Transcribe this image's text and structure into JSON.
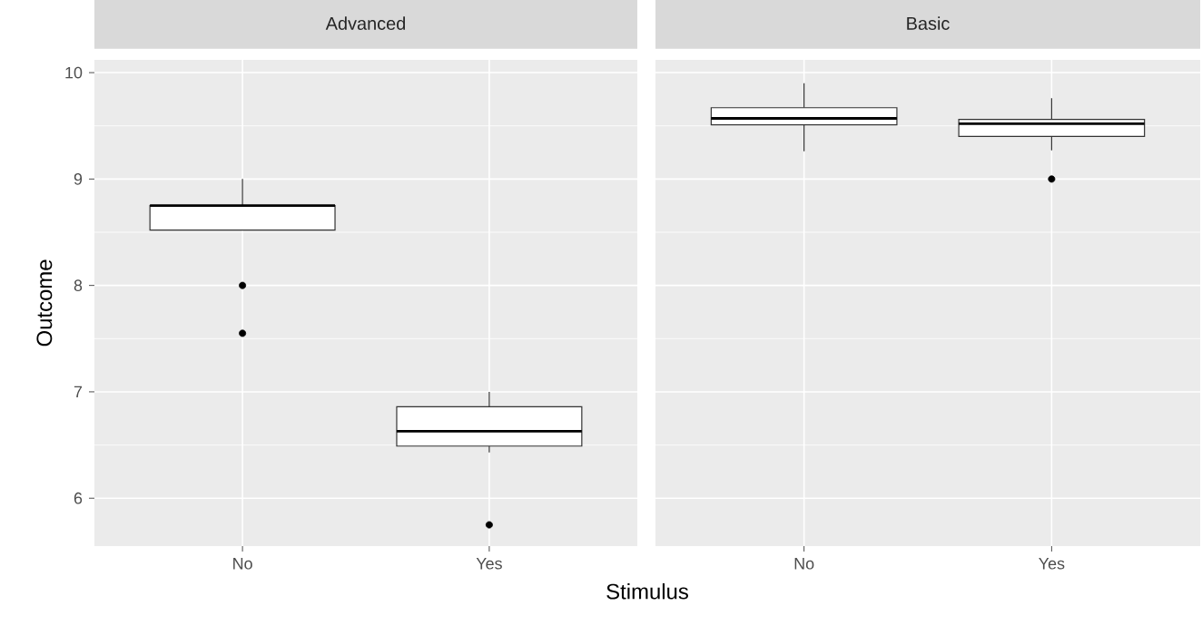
{
  "chart_data": [
    {
      "type": "box",
      "title": "Advanced",
      "xlabel": "Stimulus",
      "ylabel": "Outcome",
      "categories": [
        "No",
        "Yes"
      ],
      "boxes": [
        {
          "low": 8.52,
          "q1": 8.52,
          "median": 8.75,
          "q3": 8.75,
          "high": 9.0,
          "outliers": [
            8.0,
            7.55
          ]
        },
        {
          "low": 6.43,
          "q1": 6.49,
          "median": 6.63,
          "q3": 6.86,
          "high": 7.0,
          "outliers": [
            5.75
          ]
        }
      ],
      "ylim": [
        5.55,
        10.12
      ],
      "yticks": [
        6,
        7,
        8,
        9,
        10
      ],
      "grid": true
    },
    {
      "type": "box",
      "title": "Basic",
      "categories": [
        "No",
        "Yes"
      ],
      "boxes": [
        {
          "low": 9.26,
          "q1": 9.51,
          "median": 9.57,
          "q3": 9.67,
          "high": 9.9
        },
        {
          "low": 9.27,
          "q1": 9.4,
          "median": 9.52,
          "q3": 9.56,
          "high": 9.76,
          "outliers": [
            9.0
          ]
        }
      ],
      "ylim": [
        5.55,
        10.12
      ],
      "yticks": [
        6,
        7,
        8,
        9,
        10
      ],
      "grid": true,
      "tick_labels": "x"
    }
  ]
}
